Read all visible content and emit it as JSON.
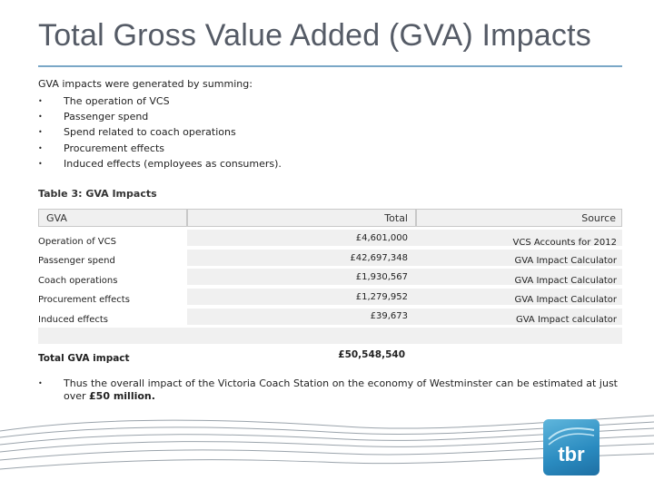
{
  "title": "Total Gross Value Added (GVA) Impacts",
  "intro": "GVA impacts were generated by summing:",
  "bullets": [
    "The operation of VCS",
    "Passenger spend",
    "Spend related to coach operations",
    "Procurement effects",
    "Induced effects (employees as consumers)."
  ],
  "table": {
    "caption": "Table 3: GVA Impacts",
    "headers": {
      "gva": "GVA",
      "total": "Total",
      "source": "Source"
    },
    "rows": [
      {
        "label": "Operation of VCS",
        "total": "£4,601,000",
        "source": "VCS  Accounts for 2012"
      },
      {
        "label": "Passenger spend",
        "total": "£42,697,348",
        "source": "GVA Impact Calculator"
      },
      {
        "label": "Coach operations",
        "total": "£1,930,567",
        "source": "GVA Impact Calculator"
      },
      {
        "label": "Procurement effects",
        "total": "£1,279,952",
        "source": "GVA Impact Calculator"
      },
      {
        "label": "Induced effects",
        "total": "£39,673",
        "source": "GVA Impact calculator"
      }
    ],
    "total_row": {
      "label": "Total GVA impact",
      "total": "£50,548,540"
    }
  },
  "conclusion_pre": "Thus the overall impact of the Victoria Coach Station on the economy of Westminster can be estimated at just over ",
  "conclusion_bold": "£50 million.",
  "logo_text": "tbr",
  "colors": {
    "title": "#555b66",
    "rule": "#7aa7c7",
    "table_fill": "#f0f0f0",
    "logo": "#2a8bc0",
    "wave": "#9aa3ab"
  }
}
